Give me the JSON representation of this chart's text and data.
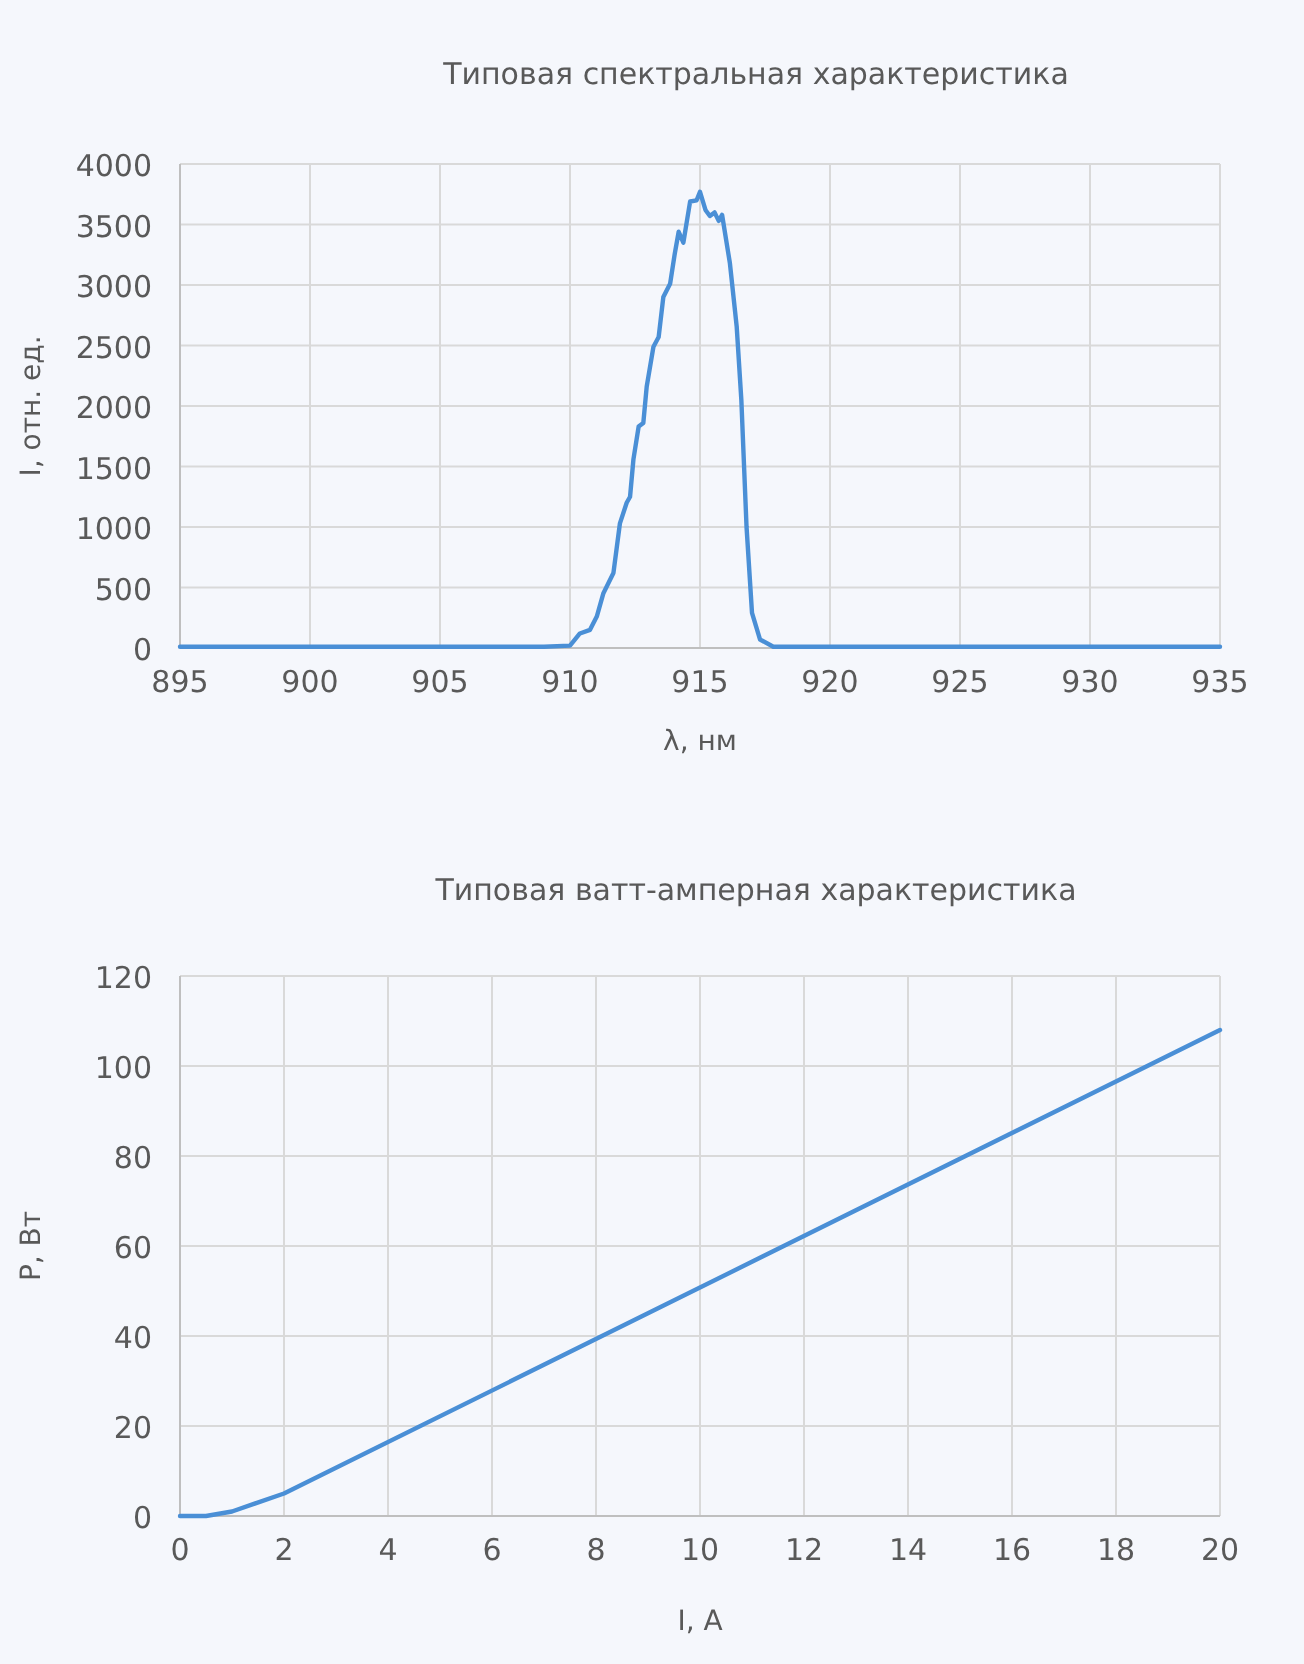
{
  "chart_data": [
    {
      "type": "line",
      "title": "Типовая спектральная характеристика",
      "xlabel": "λ, нм",
      "ylabel": "I, отн. ед.",
      "xlim": [
        895,
        935
      ],
      "xticks": [
        895,
        900,
        905,
        910,
        915,
        920,
        925,
        930,
        935
      ],
      "ylim": [
        0,
        4000
      ],
      "yticks": [
        0,
        500,
        1000,
        1500,
        2000,
        2500,
        3000,
        3500,
        4000
      ],
      "grid": true,
      "marker": "none",
      "line_style": "solid",
      "series": [
        {
          "color": "#4a8fd6",
          "x": [
            895,
            898,
            901,
            904,
            907,
            909,
            910,
            910.38,
            910.77,
            911.03,
            911.28,
            911.67,
            911.92,
            912.18,
            912.31,
            912.44,
            912.64,
            912.82,
            912.95,
            913.21,
            913.41,
            913.59,
            913.85,
            914.03,
            914.18,
            914.36,
            914.62,
            914.87,
            915,
            915.21,
            915.38,
            915.56,
            915.72,
            915.85,
            916.15,
            916.41,
            916.59,
            916.79,
            917,
            917.31,
            917.82,
            920,
            925,
            930,
            935
          ],
          "values": [
            10,
            10,
            10,
            10,
            10,
            10,
            20,
            120,
            150,
            260,
            450,
            620,
            1030,
            1200,
            1250,
            1560,
            1830,
            1860,
            2160,
            2490,
            2570,
            2900,
            3010,
            3260,
            3440,
            3350,
            3690,
            3700,
            3770,
            3620,
            3570,
            3600,
            3530,
            3580,
            3180,
            2660,
            2050,
            1000,
            290,
            70,
            10,
            10,
            10,
            10,
            10
          ]
        }
      ]
    },
    {
      "type": "line",
      "title": "Типовая ватт-амперная характеристика",
      "xlabel": "I, А",
      "ylabel": "P, Вт",
      "xlim": [
        0,
        20
      ],
      "xticks": [
        0,
        2,
        4,
        6,
        8,
        10,
        12,
        14,
        16,
        18,
        20
      ],
      "ylim": [
        0,
        120
      ],
      "yticks": [
        0,
        20,
        40,
        60,
        80,
        100,
        120
      ],
      "grid": true,
      "marker": "none",
      "line_style": "solid",
      "series": [
        {
          "color": "#4a8fd6",
          "x": [
            0,
            0.5,
            1,
            2,
            20
          ],
          "values": [
            0,
            0,
            1,
            5,
            108
          ]
        }
      ]
    }
  ]
}
